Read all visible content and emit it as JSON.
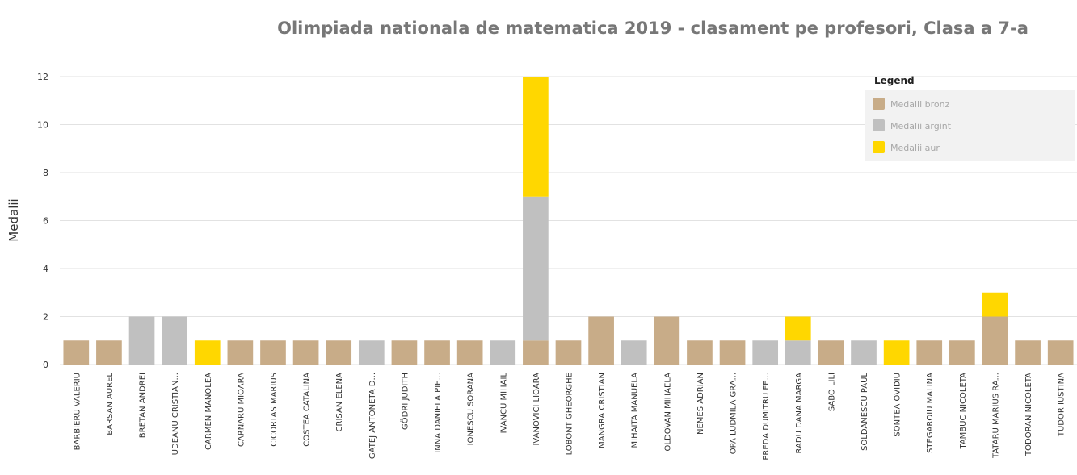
{
  "chart_data": {
    "type": "bar",
    "stacked": true,
    "title": "Olimpiada nationala de matematica 2019 - clasament pe profesori, Clasa a 7-a",
    "ylabel": "Medalii",
    "xlabel": "",
    "ylim": [
      0,
      12
    ],
    "yticks": [
      "0",
      "2",
      "4",
      "6",
      "8",
      "10",
      "12"
    ],
    "grid": true,
    "legend_position": "top-right",
    "legend_title": "Legend",
    "categories": [
      "BARBIERU VALERIU",
      "BARSAN AUREL",
      "BRETAN ANDREI",
      "UDEANU CRISTIAN...",
      "CARMEN MANOLEA",
      "CARNARU MIOARA",
      "CICORTAS MARIUS",
      "COSTEA CATALINA",
      "CRISAN ELENA",
      "GATEJ ANTONETA D...",
      "GÖDRI JUDITH",
      "INNA DANIELA PIE...",
      "IONESCU SORANA",
      "IVANCU MIHAIL",
      "IVANOVICI LIOARA",
      "LOBONT GHEORGHE",
      "MANGRA CRISTIAN",
      "MIHAITA MANUELA",
      "OLDOVAN MIHAELA",
      "NEMES ADRIAN",
      "OPA LUDMILA GRA...",
      "PREDA DUMITRU FE...",
      "RADU DANA MARGA",
      "SABO LILI",
      "SOLDANESCU PAUL",
      "SONTEA OVIDIU",
      "STEGAROIU MALINA",
      "TAMBUC NICOLETA",
      "TATARU MARIUS RA...",
      "TODORAN NICOLETA",
      "TUDOR IUSTINA"
    ],
    "series": [
      {
        "name": "Medalii bronz",
        "color": "#c8ac88",
        "values": [
          1,
          1,
          0,
          0,
          0,
          1,
          1,
          1,
          1,
          0,
          1,
          1,
          1,
          0,
          1,
          1,
          2,
          0,
          2,
          1,
          1,
          0,
          0,
          1,
          0,
          0,
          1,
          1,
          2,
          1,
          1
        ]
      },
      {
        "name": "Medalii argint",
        "color": "#c0c0c0",
        "values": [
          0,
          0,
          2,
          2,
          0,
          0,
          0,
          0,
          0,
          1,
          0,
          0,
          0,
          1,
          6,
          0,
          0,
          1,
          0,
          0,
          0,
          1,
          1,
          0,
          1,
          0,
          0,
          0,
          0,
          0,
          0
        ]
      },
      {
        "name": "Medalii aur",
        "color": "#ffd700",
        "values": [
          0,
          0,
          0,
          0,
          1,
          0,
          0,
          0,
          0,
          0,
          0,
          0,
          0,
          0,
          5,
          0,
          0,
          0,
          0,
          0,
          0,
          0,
          1,
          0,
          0,
          1,
          0,
          0,
          1,
          0,
          0
        ]
      }
    ]
  }
}
